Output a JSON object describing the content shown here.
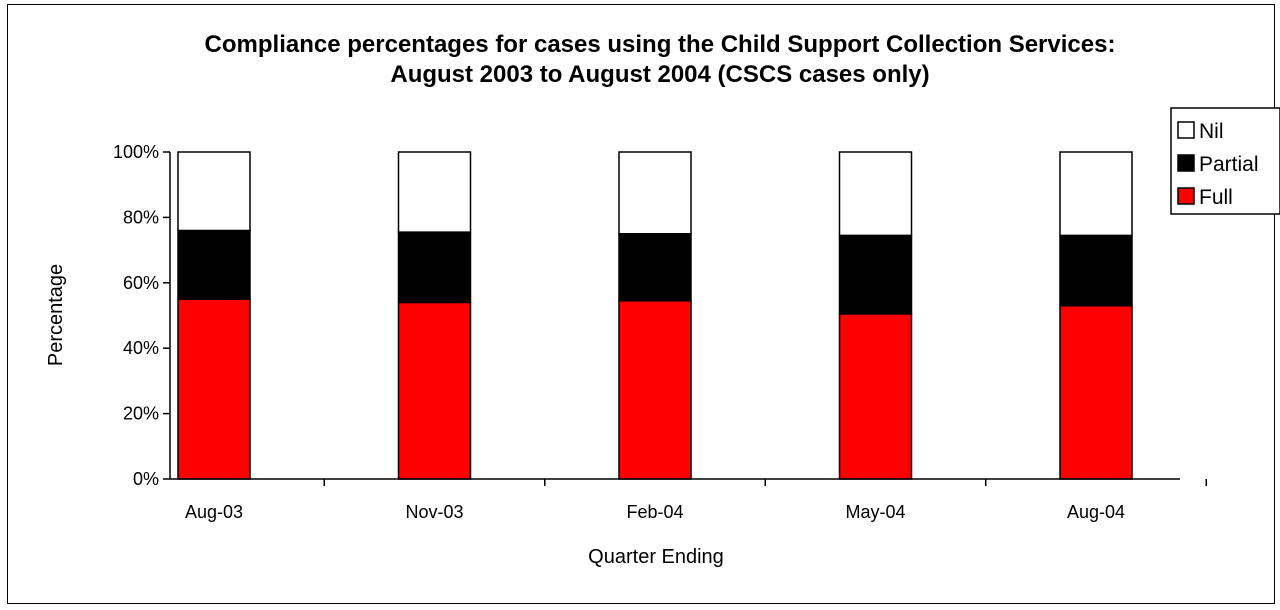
{
  "chart_data": {
    "type": "bar",
    "stacked": true,
    "title_lines": [
      "Compliance percentages for cases using the Child Support Collection Services:",
      "August 2003 to August 2004 (CSCS cases only)"
    ],
    "xlabel": "Quarter Ending",
    "ylabel": "Percentage",
    "ylim": [
      0,
      100
    ],
    "y_ticks": [
      "0%",
      "20%",
      "40%",
      "60%",
      "80%",
      "100%"
    ],
    "categories": [
      "Aug-03",
      "Nov-03",
      "Feb-04",
      "May-04",
      "Aug-04"
    ],
    "series": [
      {
        "name": "Full",
        "color": "#ff0000",
        "values": [
          55,
          54,
          54.5,
          50.5,
          53
        ]
      },
      {
        "name": "Partial",
        "color": "#000000",
        "values": [
          21,
          21.5,
          20.5,
          24,
          21.5
        ]
      },
      {
        "name": "Nil",
        "color": "#ffffff",
        "values": [
          24,
          24.5,
          25,
          25.5,
          25.5
        ]
      }
    ],
    "legend_order": [
      "Nil",
      "Partial",
      "Full"
    ],
    "legend_position": "top-right",
    "grid": false
  }
}
